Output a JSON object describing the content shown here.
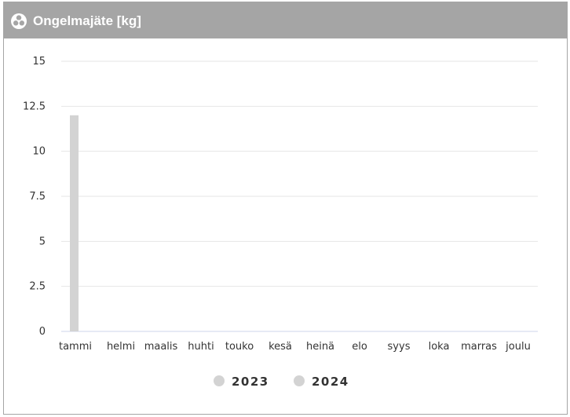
{
  "panel": {
    "title": "Ongelmajäte [kg]",
    "icon": "biohazard-icon",
    "header_color": "#a5a5a5"
  },
  "chart_data": {
    "type": "bar",
    "categories": [
      "tammi",
      "helmi",
      "maalis",
      "huhti",
      "touko",
      "kesä",
      "heinä",
      "elo",
      "syys",
      "loka",
      "marras",
      "joulu"
    ],
    "series": [
      {
        "name": "2023",
        "color": "#d3d3d3",
        "values": [
          12,
          0,
          0,
          0,
          0,
          0,
          0,
          0,
          0,
          0,
          0,
          0
        ]
      },
      {
        "name": "2024",
        "color": "#d3d3d3",
        "values": [
          0,
          0,
          0,
          0,
          0,
          0,
          0,
          0,
          0,
          0,
          0,
          0
        ]
      }
    ],
    "ylim": [
      0,
      15
    ],
    "yticks": [
      0,
      2.5,
      5,
      7.5,
      10,
      12.5,
      15
    ],
    "ytick_labels": [
      "0",
      "2.5",
      "5",
      "7.5",
      "10",
      "12.5",
      "15"
    ],
    "grid": true,
    "legend": "bottom"
  }
}
